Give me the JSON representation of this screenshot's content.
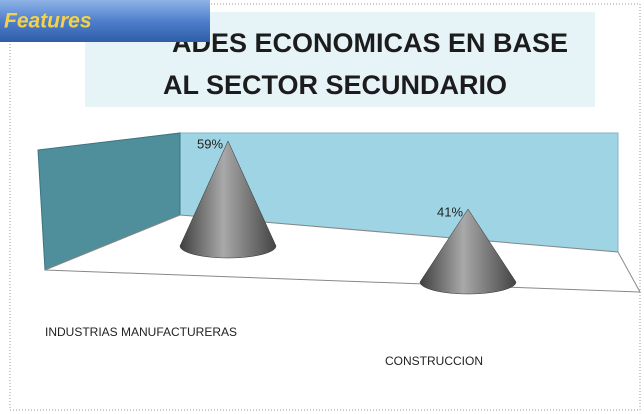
{
  "badge": "Features",
  "chart_data": {
    "type": "cone",
    "title": [
      "ADES ECONOMICAS EN BASE",
      "AL SECTOR SECUNDARIO"
    ],
    "categories": [
      "INDUSTRIAS MANUFACTURERAS",
      "CONSTRUCCION"
    ],
    "values": [
      59,
      41
    ],
    "value_labels": [
      "59%",
      "41%"
    ],
    "color": "#6e6e6e"
  }
}
